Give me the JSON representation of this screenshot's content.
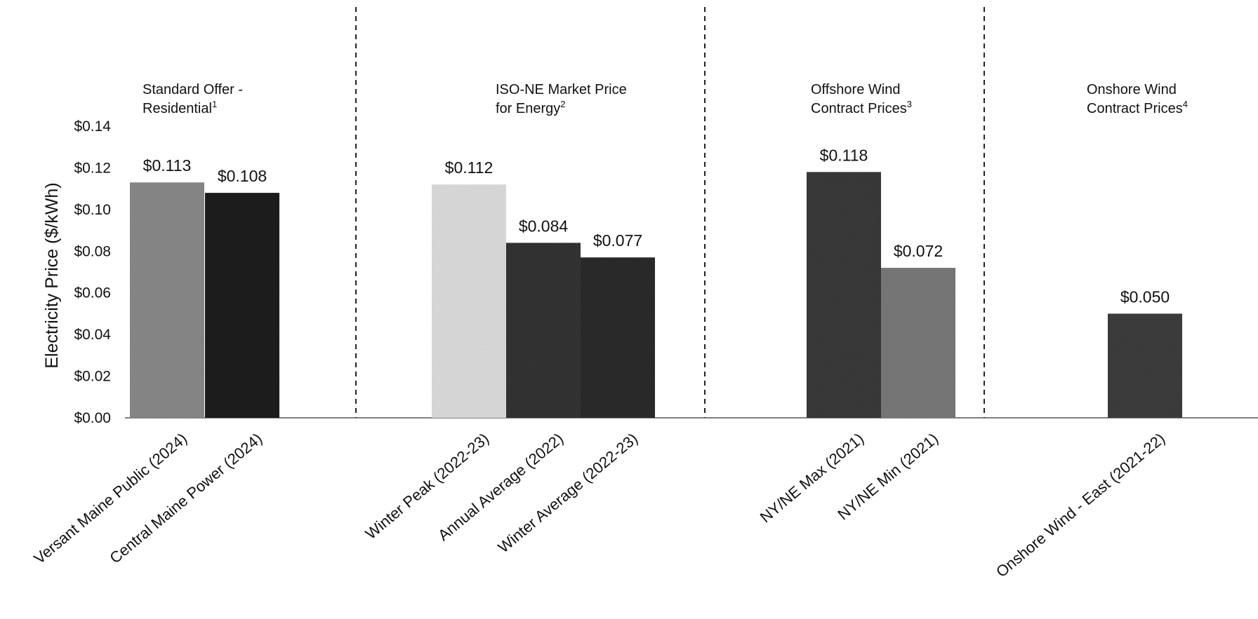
{
  "chart_data": {
    "type": "bar",
    "ylabel": "Electricity Price ($/kWh)",
    "ylim": [
      0,
      0.14
    ],
    "yticks": [
      {
        "value": 0.0,
        "label": "$0.00"
      },
      {
        "value": 0.02,
        "label": "$0.02"
      },
      {
        "value": 0.04,
        "label": "$0.04"
      },
      {
        "value": 0.06,
        "label": "$0.06"
      },
      {
        "value": 0.08,
        "label": "$0.08"
      },
      {
        "value": 0.1,
        "label": "$0.10"
      },
      {
        "value": 0.12,
        "label": "$0.12"
      },
      {
        "value": 0.14,
        "label": "$0.14"
      }
    ],
    "grid": false,
    "groups": [
      {
        "title_lines": [
          {
            "text": "Standard Offer -",
            "sup": ""
          },
          {
            "text": "Residential",
            "sup": "1"
          }
        ],
        "bars": [
          {
            "category": "Versant Maine Public (2024)",
            "value": 0.113,
            "label": "$0.113",
            "color": "#8a8a8a"
          },
          {
            "category": "Central Maine Power (2024)",
            "value": 0.108,
            "label": "$0.108",
            "color": "#1c1c1c"
          }
        ]
      },
      {
        "title_lines": [
          {
            "text": "ISO-NE Market Price",
            "sup": ""
          },
          {
            "text": "for Energy",
            "sup": "2"
          }
        ],
        "bars": [
          {
            "category": "Winter Peak (2022-23)",
            "value": 0.112,
            "label": "$0.112",
            "color": "#dedede"
          },
          {
            "category": "Annual Average (2022)",
            "value": 0.084,
            "label": "$0.084",
            "color": "#333333"
          },
          {
            "category": "Winter Average (2022-23)",
            "value": 0.077,
            "label": "$0.077",
            "color": "#2b2b2b"
          }
        ]
      },
      {
        "title_lines": [
          {
            "text": "Offshore Wind",
            "sup": ""
          },
          {
            "text": "Contract Prices",
            "sup": "3"
          }
        ],
        "bars": [
          {
            "category": "NY/NE Max (2021)",
            "value": 0.118,
            "label": "$0.118",
            "color": "#3a3a3a"
          },
          {
            "category": "NY/NE Min (2021)",
            "value": 0.072,
            "label": "$0.072",
            "color": "#7a7a7a"
          }
        ]
      },
      {
        "title_lines": [
          {
            "text": "Onshore Wind",
            "sup": ""
          },
          {
            "text": "Contract Prices",
            "sup": "4"
          }
        ],
        "bars": [
          {
            "category": "Onshore Wind - East (2021-22)",
            "value": 0.05,
            "label": "$0.050",
            "color": "#3d3d3d"
          }
        ]
      }
    ]
  }
}
